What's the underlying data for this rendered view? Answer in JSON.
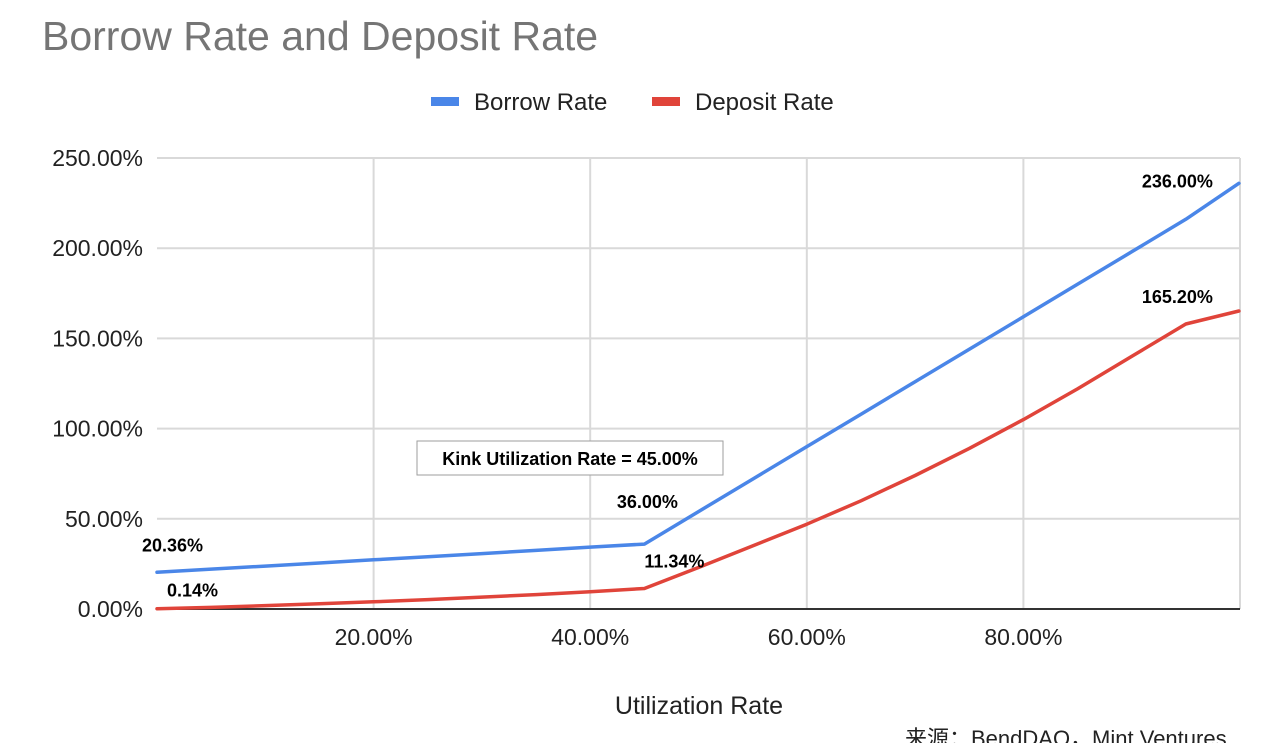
{
  "chart_data": {
    "type": "line",
    "title": "Borrow Rate and Deposit Rate",
    "xlabel": "Utilization Rate",
    "ylabel": "",
    "x": [
      0,
      5,
      10,
      15,
      20,
      25,
      30,
      35,
      40,
      45,
      50,
      55,
      60,
      65,
      70,
      75,
      80,
      85,
      90,
      95,
      99.9
    ],
    "series": [
      {
        "name": "Borrow Rate",
        "color": "#4a86e8",
        "values": [
          20.36,
          22.1,
          23.8,
          25.5,
          27.3,
          29.0,
          30.7,
          32.5,
          34.3,
          36.0,
          54.0,
          72.0,
          90.0,
          108.0,
          126.0,
          144.0,
          162.0,
          180.0,
          198.0,
          216.0,
          236.0
        ]
      },
      {
        "name": "Deposit Rate",
        "color": "#e0443a",
        "values": [
          0.14,
          0.9,
          1.9,
          2.9,
          4.0,
          5.2,
          6.6,
          8.0,
          9.6,
          11.34,
          23.0,
          35.0,
          47.0,
          60.0,
          74.0,
          89.0,
          105.0,
          122.0,
          140.0,
          158.0,
          165.2
        ]
      }
    ],
    "ylim": [
      0,
      250
    ],
    "xlim": [
      0,
      100
    ],
    "y_ticks": [
      "0.00%",
      "50.00%",
      "100.00%",
      "150.00%",
      "200.00%",
      "250.00%"
    ],
    "y_tick_values": [
      0,
      50,
      100,
      150,
      200,
      250
    ],
    "x_ticks": [
      "20.00%",
      "40.00%",
      "60.00%",
      "80.00%"
    ],
    "x_tick_values": [
      20,
      40,
      60,
      80
    ],
    "grid": true,
    "legend_placement": "top-center",
    "data_labels": [
      {
        "series": "Borrow Rate",
        "x": 0,
        "y": 20.36,
        "text": "20.36%"
      },
      {
        "series": "Borrow Rate",
        "x": 45,
        "y": 36.0,
        "text": "36.00%"
      },
      {
        "series": "Borrow Rate",
        "x": 99.9,
        "y": 236.0,
        "text": "236.00%"
      },
      {
        "series": "Deposit Rate",
        "x": 0,
        "y": 0.14,
        "text": "0.14%"
      },
      {
        "series": "Deposit Rate",
        "x": 45,
        "y": 11.34,
        "text": "11.34%"
      },
      {
        "series": "Deposit Rate",
        "x": 99.9,
        "y": 165.2,
        "text": "165.20%"
      }
    ],
    "annotation": "Kink Utilization Rate = 45.00%",
    "source": "来源：BendDAO，Mint Ventures"
  }
}
